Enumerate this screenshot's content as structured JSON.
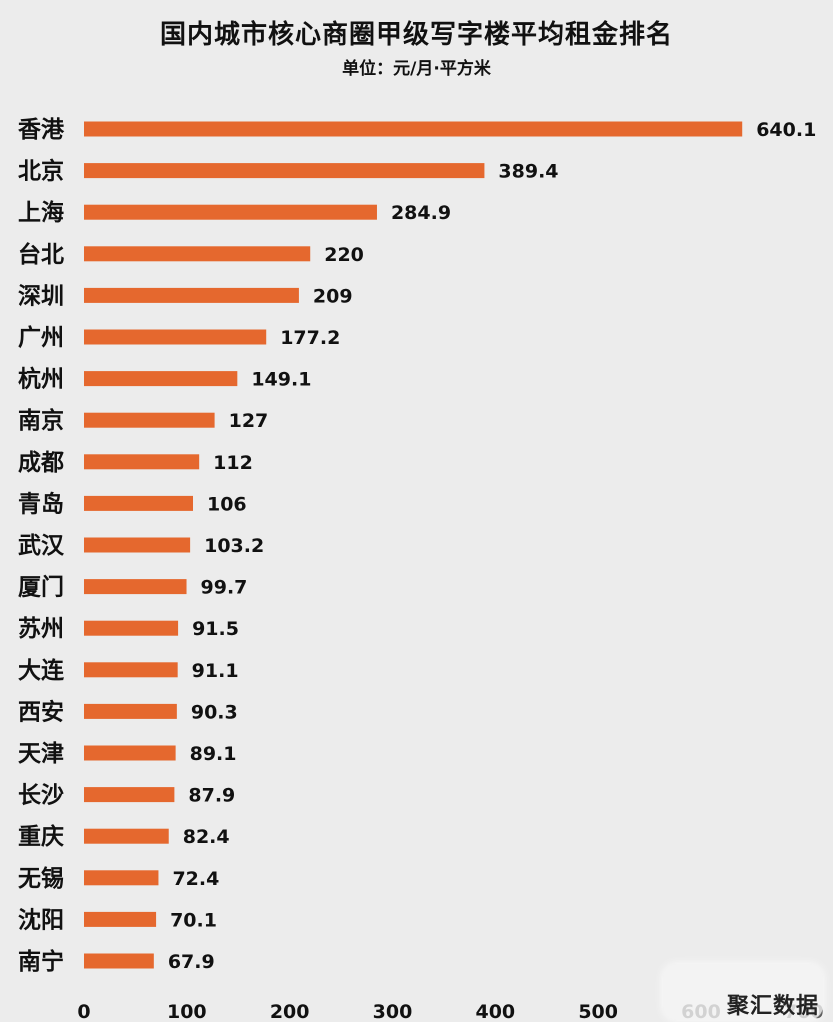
{
  "chart_data": {
    "type": "bar",
    "orientation": "horizontal",
    "title": "国内城市核心商圈甲级写字楼平均租金排名",
    "subtitle": "单位：元/月·平方米",
    "categories": [
      "香港",
      "北京",
      "上海",
      "台北",
      "深圳",
      "广州",
      "杭州",
      "南京",
      "成都",
      "青岛",
      "武汉",
      "厦门",
      "苏州",
      "大连",
      "西安",
      "天津",
      "长沙",
      "重庆",
      "无锡",
      "沈阳",
      "南宁"
    ],
    "values": [
      640.1,
      389.4,
      284.9,
      220,
      209,
      177.2,
      149.1,
      127,
      112,
      106,
      103.2,
      99.7,
      91.5,
      91.1,
      90.3,
      89.1,
      87.9,
      82.4,
      72.4,
      70.1,
      67.9
    ],
    "value_labels": [
      "640.1",
      "389.4",
      "284.9",
      "220",
      "209",
      "177.2",
      "149.1",
      "127",
      "112",
      "106",
      "103.2",
      "99.7",
      "91.5",
      "91.1",
      "90.3",
      "89.1",
      "87.9",
      "82.4",
      "72.4",
      "70.1",
      "67.9"
    ],
    "x_ticks": [
      "0",
      "100",
      "200",
      "300",
      "400",
      "500",
      "600",
      "700"
    ],
    "xlim": [
      0,
      700
    ],
    "bar_color": "#e5682e",
    "grid": false,
    "legend": "none"
  },
  "watermark": {
    "text": "聚汇数据"
  }
}
